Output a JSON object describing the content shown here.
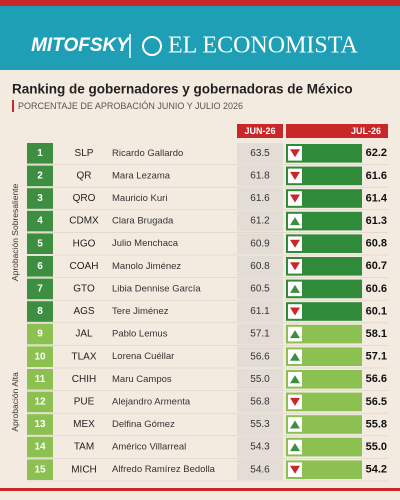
{
  "header": {
    "brand_left": "MITOFSKY",
    "brand_right": "EL ECONOMISTA"
  },
  "title": "Ranking de gobernadores y gobernadoras de México",
  "subtitle": "PORCENTAJE DE APROBACIÓN JUNIO Y JULIO 2026",
  "columns": {
    "jun": "JUN-26",
    "jul": "JUL-26"
  },
  "groups": [
    {
      "label": "Aprobación Sobresaliente",
      "rows": [
        [
          1,
          "SLP",
          "Ricardo Gallardo",
          "63.5",
          "62.2"
        ],
        [
          2,
          "QR",
          "Mara Lezama",
          "61.8",
          "61.6"
        ],
        [
          3,
          "QRO",
          "Mauricio Kuri",
          "61.6",
          "61.4"
        ],
        [
          4,
          "CDMX",
          "Clara Brugada",
          "61.2",
          "61.3"
        ],
        [
          5,
          "HGO",
          "Julio Menchaca",
          "60.9",
          "60.8"
        ],
        [
          6,
          "COAH",
          "Manolo Jiménez",
          "60.8",
          "60.7"
        ],
        [
          7,
          "GTO",
          "Libia Dennise García",
          "60.5",
          "60.6"
        ],
        [
          8,
          "AGS",
          "Tere Jiménez",
          "61.1",
          "60.1"
        ]
      ]
    },
    {
      "label": "Aprobación Alta",
      "rows": [
        [
          9,
          "JAL",
          "Pablo Lemus",
          "57.1",
          "58.1"
        ],
        [
          10,
          "TLAX",
          "Lorena Cuéllar",
          "56.6",
          "57.1"
        ],
        [
          11,
          "CHIH",
          "Maru Campos",
          "55.0",
          "56.6"
        ],
        [
          12,
          "PUE",
          "Alejandro Armenta",
          "56.8",
          "56.5"
        ],
        [
          13,
          "MEX",
          "Delfina Gómez",
          "55.3",
          "55.8"
        ],
        [
          14,
          "TAM",
          "Américo Villarreal",
          "54.3",
          "55.0"
        ],
        [
          15,
          "MICH",
          "Alfredo Ramírez Bedolla",
          "54.6",
          "54.2"
        ]
      ]
    }
  ]
}
